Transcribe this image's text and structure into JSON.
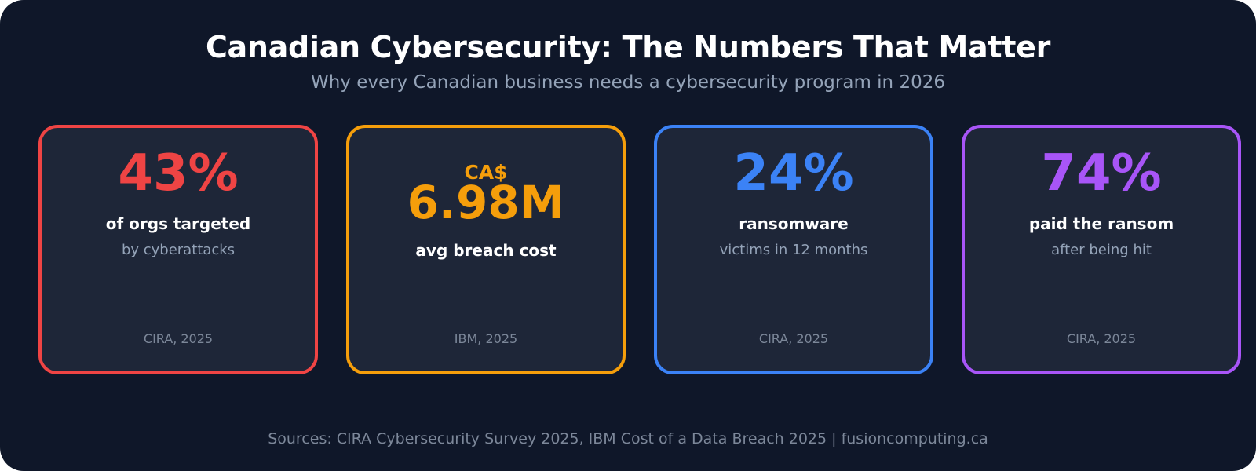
{
  "header": {
    "title": "Canadian Cybersecurity: The Numbers That Matter",
    "subtitle": "Why every Canadian business needs a cybersecurity program in 2026"
  },
  "cards": [
    {
      "value": "43%",
      "label": "of orgs targeted",
      "detail": "by cyberattacks",
      "source": "CIRA, 2025",
      "color": "#ef4444"
    },
    {
      "prefix": "CA$",
      "value": "6.98M",
      "label": "avg breach cost",
      "source": "IBM, 2025",
      "color": "#f59e0b"
    },
    {
      "value": "24%",
      "label": "ransomware",
      "detail": "victims in 12 months",
      "source": "CIRA, 2025",
      "color": "#3b82f6"
    },
    {
      "value": "74%",
      "label": "paid the ransom",
      "detail": "after being hit",
      "source": "CIRA, 2025",
      "color": "#a855f7"
    }
  ],
  "footer": {
    "sources": "Sources: CIRA Cybersecurity Survey 2025, IBM Cost of a Data Breach 2025 | fusioncomputing.ca"
  },
  "theme": {
    "background": "#0f1729",
    "card_background": "#1e2638",
    "text_primary": "#ffffff",
    "text_secondary": "#94a3b8"
  }
}
